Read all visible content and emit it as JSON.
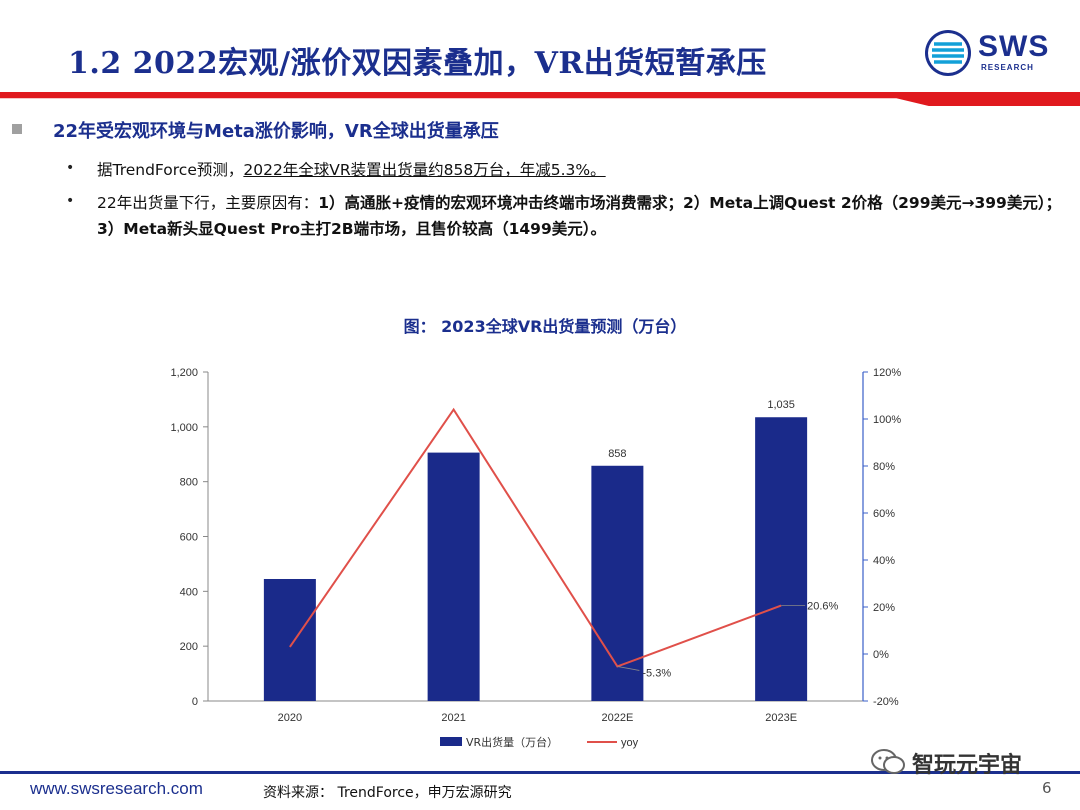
{
  "header": {
    "title": "1.2 2022宏观/涨价双因素叠加，VR出货短暂承压",
    "logo_text": "SWS",
    "logo_sub": "RESEARCH"
  },
  "content": {
    "heading": "22年受宏观环境与Meta涨价影响，VR全球出货量承压",
    "bullet1_prefix": "据TrendForce预测，",
    "bullet1_underlined": "2022年全球VR装置出货量约858万台，年减5.3%。",
    "bullet2_plain": "22年出货量下行，主要原因有：",
    "bullet2_bold": "1）高通胀+疫情的宏观环境冲击终端市场消费需求；2）Meta上调Quest 2价格（299美元→399美元）；3）Meta新头显Quest Pro主打2B端市场，且售价较高（1499美元）。"
  },
  "chart_data": {
    "type": "bar",
    "title": "图： 2023全球VR出货量预测（万台）",
    "categories": [
      "2020",
      "2021",
      "2022E",
      "2023E"
    ],
    "series": [
      {
        "name": "VR出货量（万台）",
        "type": "bar",
        "axis": "left",
        "color": "#1a2a8a",
        "values": [
          445,
          906,
          858,
          1035
        ],
        "labels": [
          "",
          "",
          "858",
          "1,035"
        ]
      },
      {
        "name": "yoy",
        "type": "line",
        "axis": "right",
        "color": "#e0504a",
        "values": [
          0.03,
          1.04,
          -0.053,
          0.206
        ],
        "labels": [
          "",
          "",
          "-5.3%",
          "20.6%"
        ]
      }
    ],
    "y_left": {
      "min": 0,
      "max": 1200,
      "ticks": [
        "0",
        "200",
        "400",
        "600",
        "800",
        "1,000",
        "1,200"
      ]
    },
    "y_right": {
      "min": -0.2,
      "max": 1.2,
      "ticks": [
        "-20%",
        "0%",
        "20%",
        "40%",
        "60%",
        "80%",
        "100%",
        "120%"
      ]
    },
    "legend_position": "bottom",
    "grid": false
  },
  "footer": {
    "source": "资料来源： TrendForce，申万宏源研究",
    "url": "www.swsresearch.com",
    "page": "6",
    "account_name": "智玩元宇宙"
  }
}
